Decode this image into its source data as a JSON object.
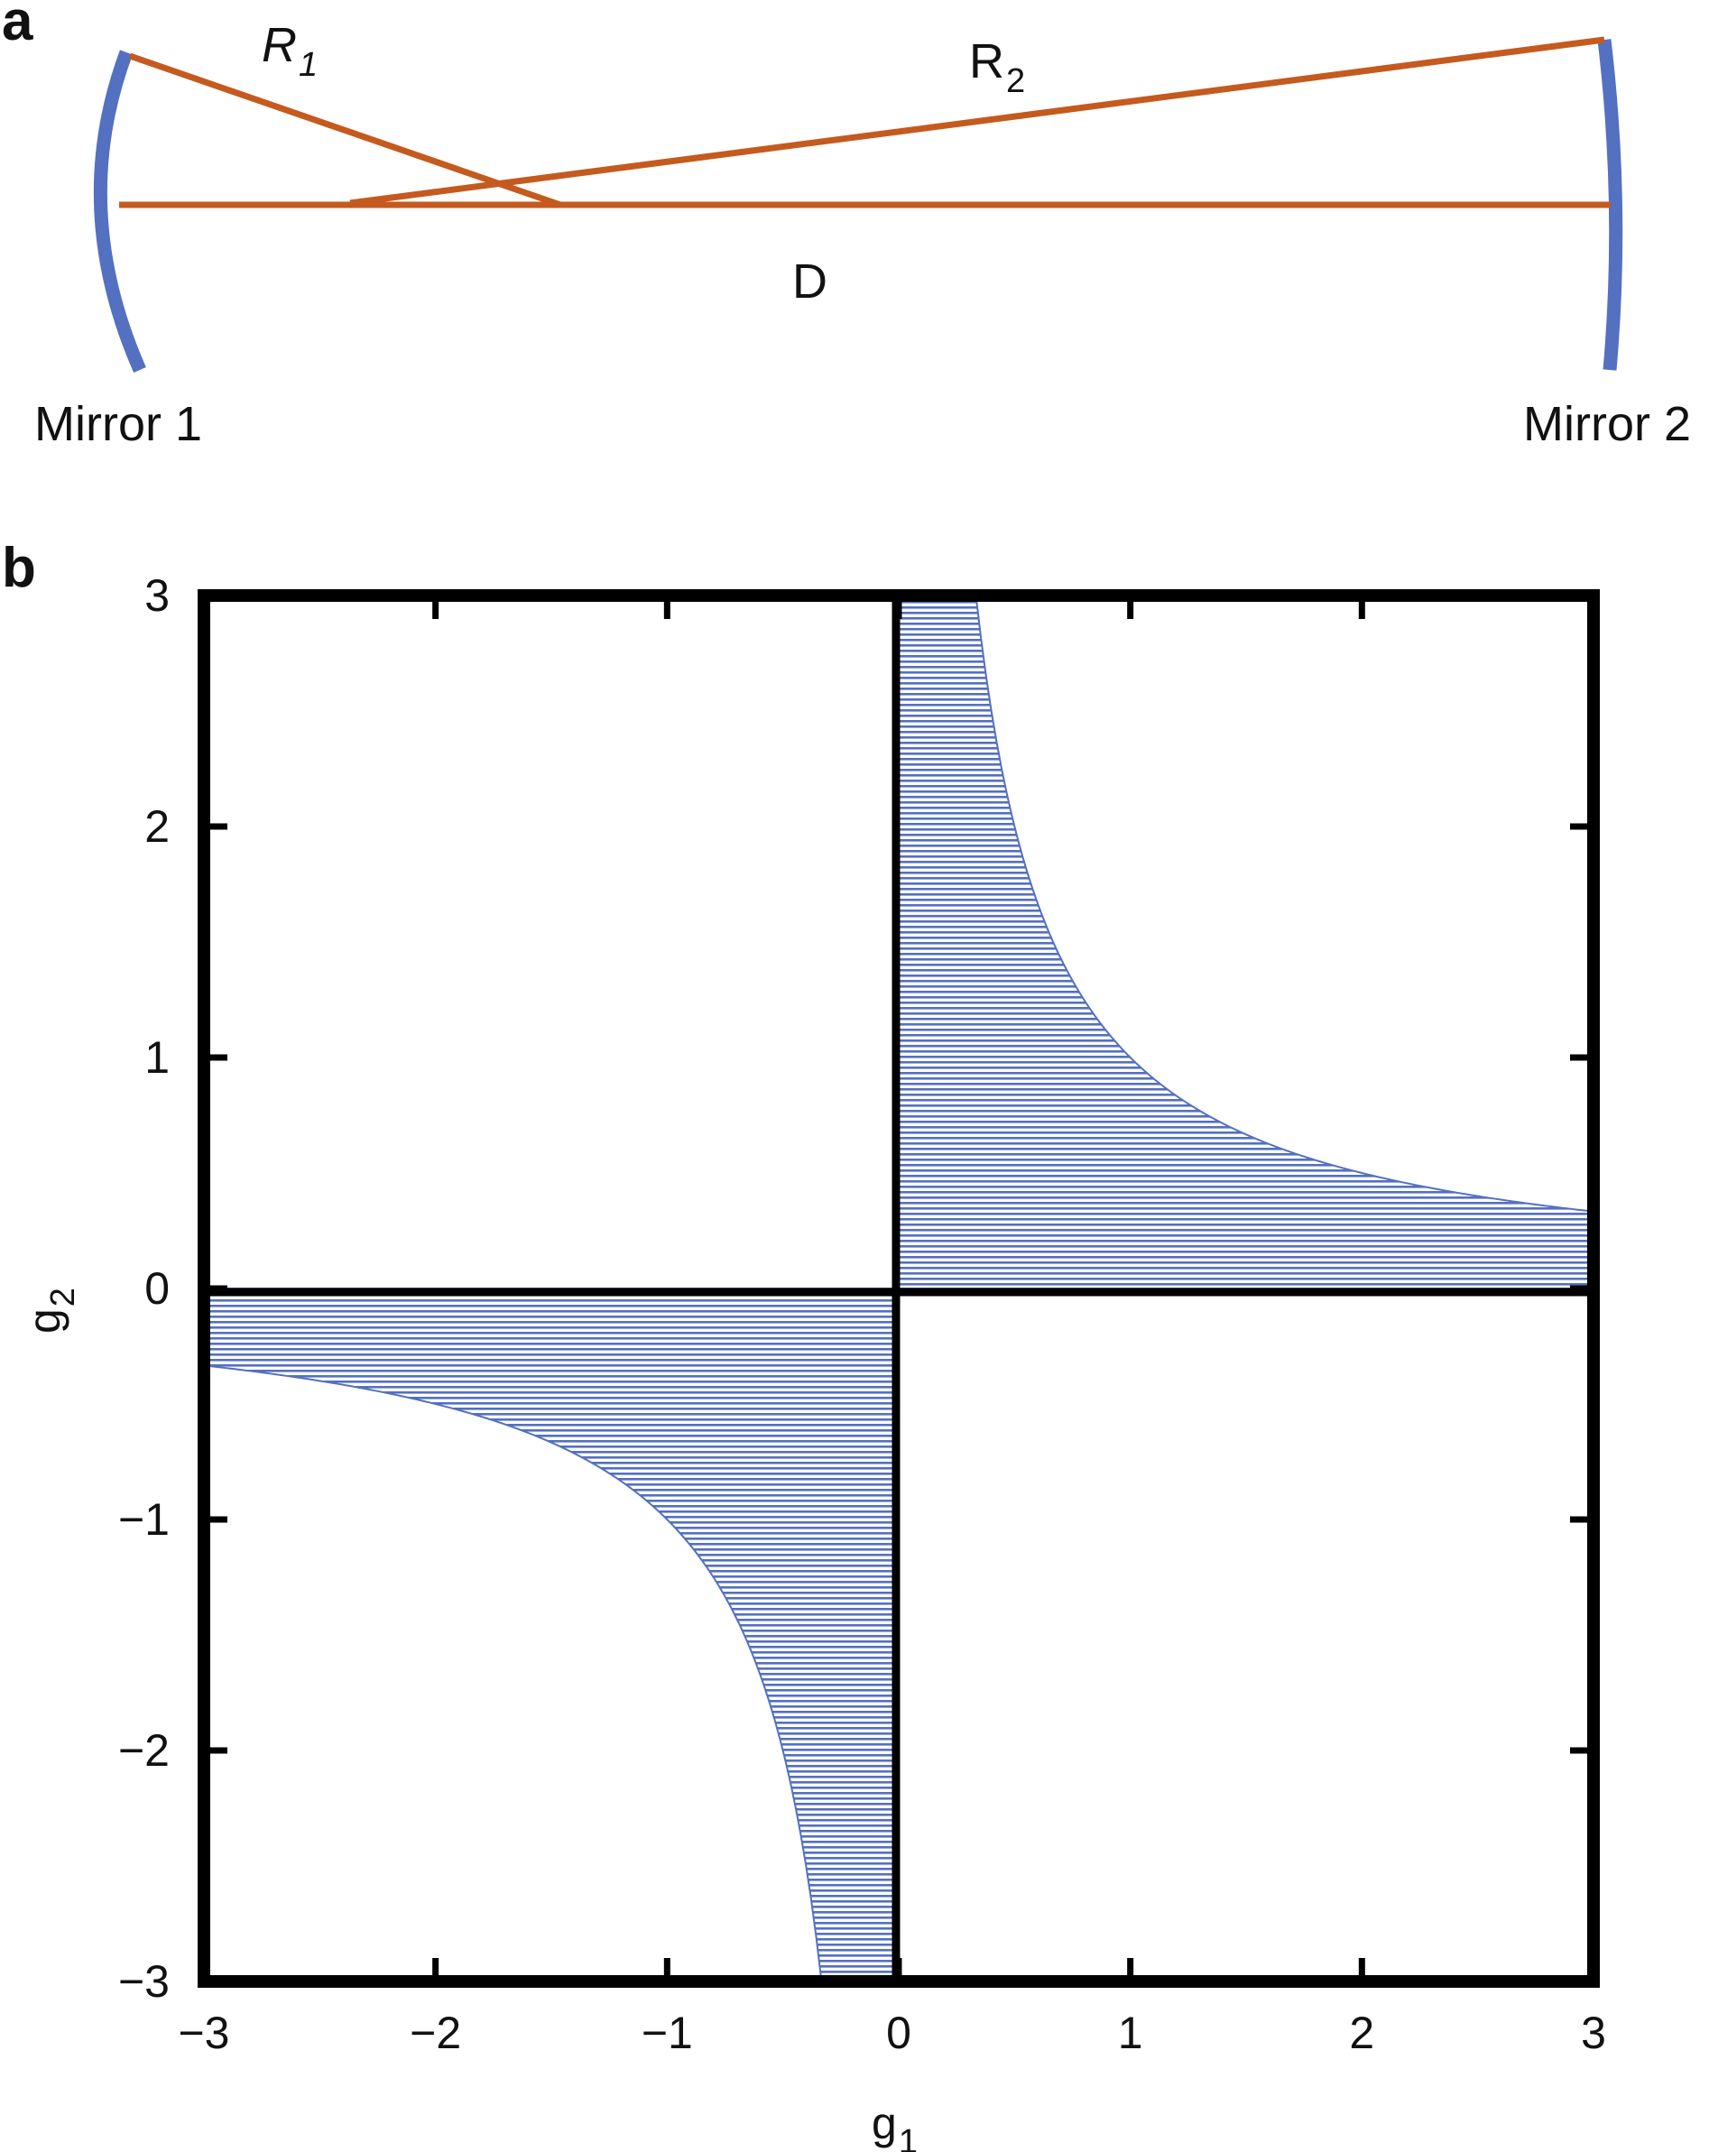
{
  "panel_a": {
    "label": "a",
    "r1": {
      "main": "R",
      "sub": "1"
    },
    "r2": {
      "main": "R",
      "sub": "2"
    },
    "d": "D",
    "mirror1": "Mirror 1",
    "mirror2": "Mirror 2",
    "colors": {
      "mirror": "#5470c0",
      "ray": "#c55a1f"
    }
  },
  "panel_b": {
    "label": "b",
    "colors": {
      "hatch": "#5470c0",
      "axis": "#000000"
    }
  },
  "chart_data": {
    "type": "area",
    "xlabel": {
      "main": "g",
      "sub": "1"
    },
    "ylabel": {
      "main": "g",
      "sub": "2"
    },
    "xlim": [
      -3,
      3
    ],
    "ylim": [
      -3,
      3
    ],
    "xticks": [
      -3,
      -2,
      -1,
      0,
      1,
      2,
      3
    ],
    "yticks": [
      -3,
      -2,
      -1,
      0,
      1,
      2,
      3
    ],
    "xtick_labels": [
      "−3",
      "−2",
      "−1",
      "0",
      "1",
      "2",
      "3"
    ],
    "ytick_labels": [
      "−3",
      "−2",
      "−1",
      "0",
      "1",
      "2",
      "3"
    ],
    "grid": false,
    "regions": [
      {
        "quadrant": "g1>0, g2>0",
        "boundary": "g1*g2 = 1",
        "fill": "hatched"
      },
      {
        "quadrant": "g1<0, g2<0",
        "boundary": "g1*g2 = 1",
        "fill": "hatched"
      }
    ]
  }
}
